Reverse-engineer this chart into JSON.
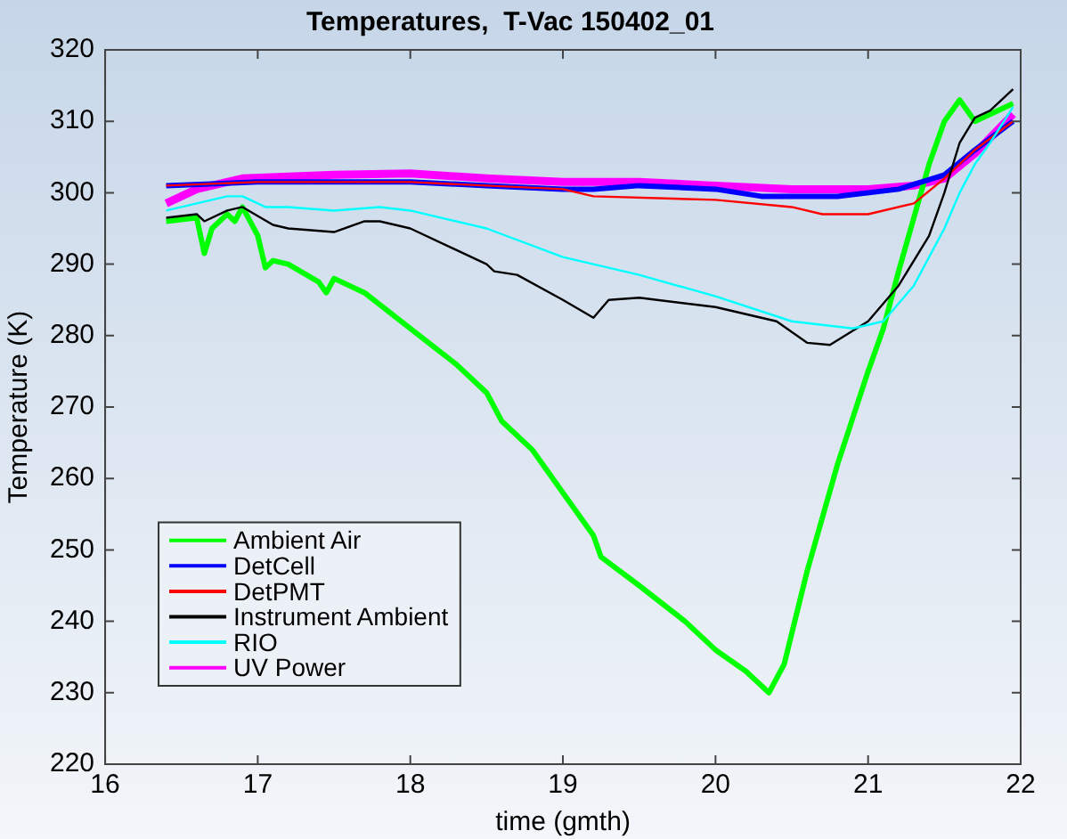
{
  "chart_data": {
    "type": "line",
    "title": "Temperatures,  T-Vac 150402_01",
    "xlabel": "time (gmth)",
    "ylabel": "Temperature (K)",
    "xlim": [
      16,
      22
    ],
    "ylim": [
      220,
      320
    ],
    "xticks": [
      16,
      17,
      18,
      19,
      20,
      21,
      22
    ],
    "yticks": [
      220,
      230,
      240,
      250,
      260,
      270,
      280,
      290,
      300,
      310,
      320
    ],
    "grid": false,
    "legend": "bottom left",
    "marker": "none",
    "line_style": "solid",
    "series": [
      {
        "name": "Ambient Air",
        "color": "#00ff00",
        "x": [
          16.4,
          16.6,
          16.65,
          16.7,
          16.8,
          16.85,
          16.9,
          17.0,
          17.05,
          17.1,
          17.2,
          17.4,
          17.45,
          17.5,
          17.7,
          18.0,
          18.3,
          18.5,
          18.6,
          18.8,
          19.0,
          19.2,
          19.25,
          19.5,
          19.8,
          20.0,
          20.2,
          20.35,
          20.45,
          20.6,
          20.8,
          21.0,
          21.1,
          21.2,
          21.4,
          21.5,
          21.6,
          21.7,
          21.8,
          21.9,
          21.95
        ],
        "values": [
          296,
          296.5,
          291.5,
          295,
          297,
          296,
          298,
          294,
          289.5,
          290.5,
          290,
          287.5,
          286,
          288,
          286,
          281,
          276,
          272,
          268,
          264,
          258,
          252,
          249,
          245,
          240,
          236,
          233,
          230,
          234,
          247,
          262,
          275,
          281,
          289,
          304,
          310,
          313,
          310,
          311,
          312,
          312.5
        ]
      },
      {
        "name": "DetCell",
        "color": "#0000ff",
        "x": [
          16.4,
          17,
          17.5,
          18,
          18.5,
          19,
          19.2,
          19.5,
          20,
          20.3,
          20.8,
          21.2,
          21.5,
          21.7,
          21.95
        ],
        "values": [
          301,
          301.5,
          301.5,
          301.5,
          301,
          300.5,
          300.5,
          301,
          300.5,
          299.5,
          299.5,
          300.5,
          302.5,
          306,
          310
        ]
      },
      {
        "name": "DetPMT",
        "color": "#ff0000",
        "x": [
          16.4,
          17,
          17.5,
          18,
          18.5,
          19,
          19.2,
          20,
          20.5,
          20.7,
          21,
          21.3,
          21.5,
          21.7,
          21.95
        ],
        "values": [
          301,
          301.5,
          301.5,
          301.5,
          301,
          300.5,
          299.5,
          299,
          298,
          297,
          297,
          298.5,
          302,
          306,
          310
        ]
      },
      {
        "name": "Instrument Ambient",
        "color": "#000000",
        "x": [
          16.4,
          16.6,
          16.65,
          16.8,
          16.9,
          17.1,
          17.2,
          17.5,
          17.7,
          17.8,
          18,
          18.5,
          18.55,
          18.7,
          19.0,
          19.2,
          19.3,
          19.5,
          20,
          20.4,
          20.6,
          20.75,
          21.0,
          21.2,
          21.4,
          21.5,
          21.6,
          21.7,
          21.8,
          21.9,
          21.95
        ],
        "values": [
          296.5,
          297,
          296,
          297.5,
          298,
          295.5,
          295,
          294.5,
          296,
          296,
          295,
          290,
          289,
          288.5,
          285,
          282.5,
          285,
          285.3,
          284,
          282,
          279,
          278.7,
          282,
          287,
          294,
          300,
          307,
          310.5,
          311.5,
          313.5,
          314.5
        ]
      },
      {
        "name": "RIO",
        "color": "#00ffff",
        "x": [
          16.4,
          16.6,
          16.8,
          16.9,
          17.05,
          17.2,
          17.5,
          17.8,
          18,
          18.5,
          19,
          19.2,
          19.5,
          20,
          20.5,
          20.9,
          21.1,
          21.3,
          21.5,
          21.6,
          21.7,
          21.8,
          21.95
        ],
        "values": [
          297.5,
          298.5,
          299.5,
          299.5,
          298,
          298,
          297.5,
          298,
          297.5,
          295,
          291,
          290,
          288.5,
          285.5,
          282,
          281,
          282,
          287,
          295,
          300,
          304,
          307,
          312
        ]
      },
      {
        "name": "UV Power",
        "color": "#ff00ff",
        "x": [
          16.4,
          16.6,
          16.9,
          17.5,
          18,
          18.5,
          19,
          19.5,
          20,
          20.5,
          21,
          21.3,
          21.5,
          21.7,
          21.95
        ],
        "values": [
          298.5,
          300.5,
          302,
          302.5,
          302.7,
          302,
          301.5,
          301.5,
          301,
          300.5,
          300.5,
          301,
          302,
          305.5,
          311
        ]
      }
    ]
  }
}
